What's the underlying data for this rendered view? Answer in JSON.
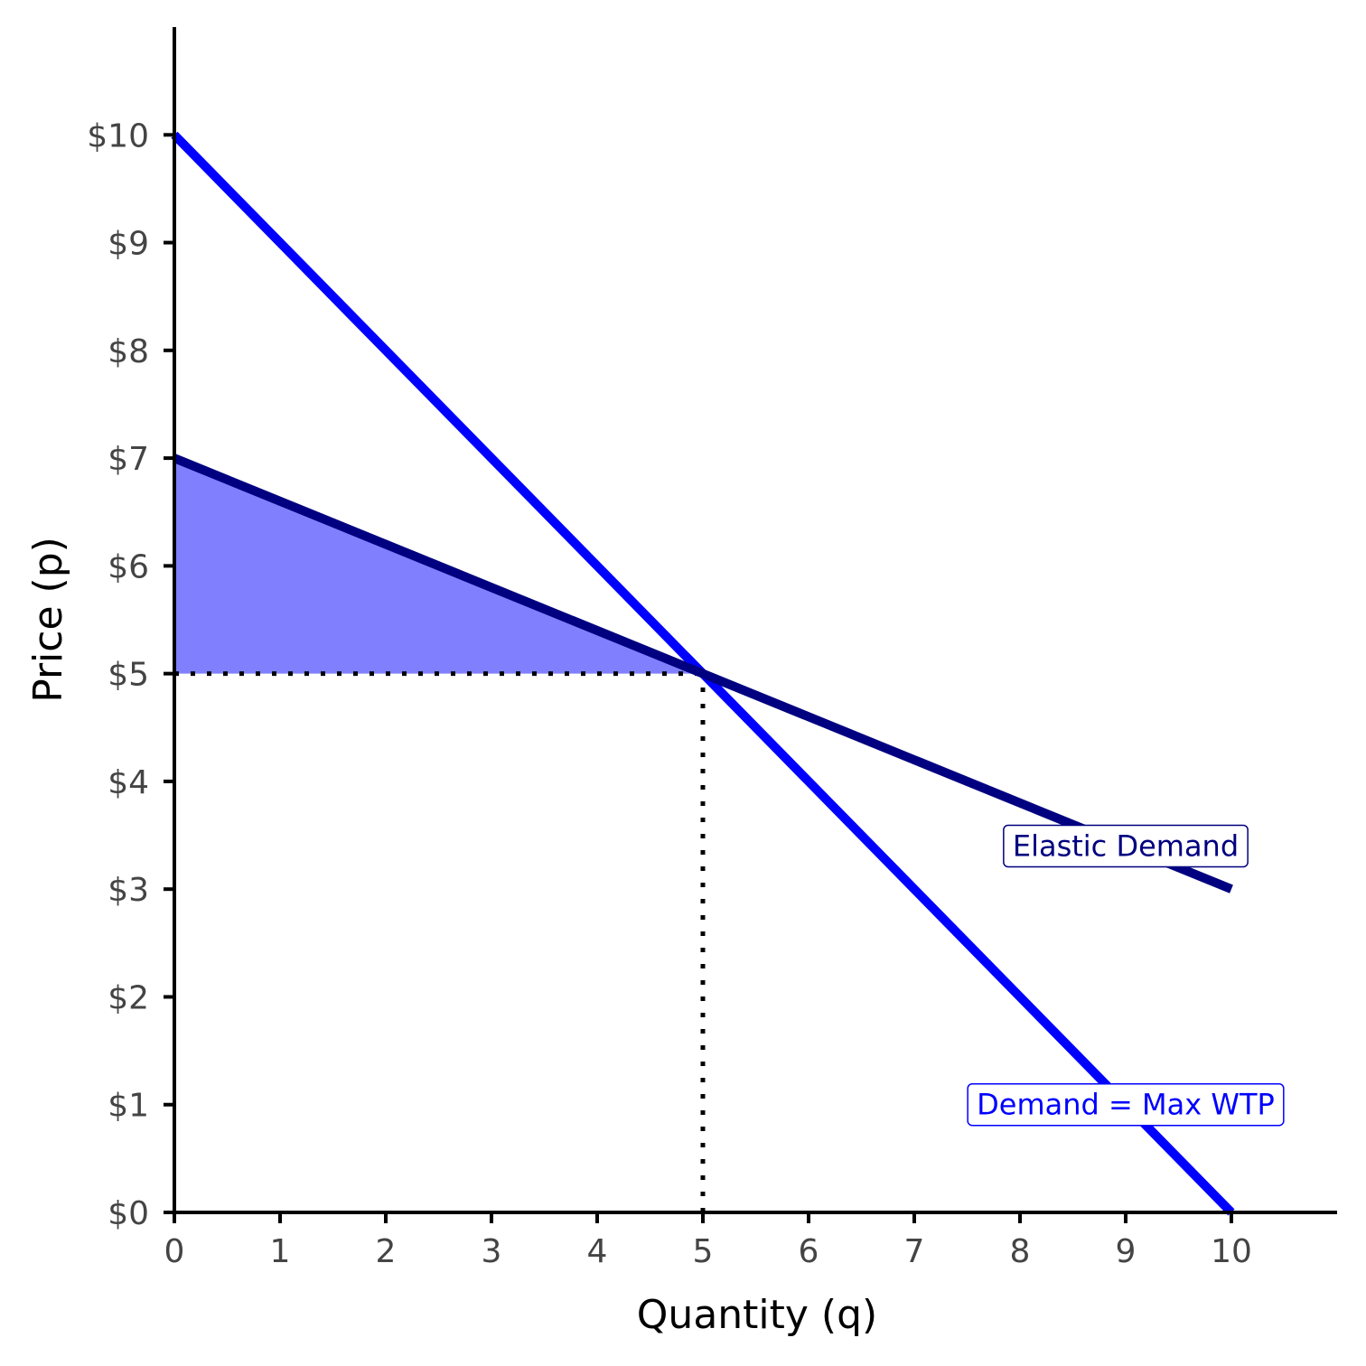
{
  "chart_data": {
    "type": "line",
    "xlabel": "Quantity (q)",
    "ylabel": "Price (p)",
    "xlim": [
      0,
      11
    ],
    "ylim": [
      0,
      11
    ],
    "x_ticks": [
      0,
      1,
      2,
      3,
      4,
      5,
      6,
      7,
      8,
      9,
      10
    ],
    "x_tick_labels": [
      "0",
      "1",
      "2",
      "3",
      "4",
      "5",
      "6",
      "7",
      "8",
      "9",
      "10"
    ],
    "y_ticks": [
      0,
      1,
      2,
      3,
      4,
      5,
      6,
      7,
      8,
      9,
      10
    ],
    "y_tick_labels": [
      "$0",
      "$1",
      "$2",
      "$3",
      "$4",
      "$5",
      "$6",
      "$7",
      "$8",
      "$9",
      "$10"
    ],
    "grid": false,
    "series": [
      {
        "name": "Demand = Max WTP",
        "color": "#0000ff",
        "points": [
          {
            "x": 0,
            "y": 10
          },
          {
            "x": 10,
            "y": 0
          }
        ],
        "label_at": {
          "x": 9,
          "y": 1
        }
      },
      {
        "name": "Elastic Demand",
        "color": "#000080",
        "points": [
          {
            "x": 0,
            "y": 7
          },
          {
            "x": 10,
            "y": 3
          }
        ],
        "label_at": {
          "x": 9,
          "y": 3.4
        }
      }
    ],
    "shaded_area": {
      "color": "#8080ff",
      "polygon": [
        {
          "x": 0,
          "y": 7
        },
        {
          "x": 5,
          "y": 5
        },
        {
          "x": 0,
          "y": 5
        }
      ]
    },
    "reference_lines": [
      {
        "from": {
          "x": 0,
          "y": 5
        },
        "to": {
          "x": 5,
          "y": 5
        },
        "style": "dotted"
      },
      {
        "from": {
          "x": 5,
          "y": 0
        },
        "to": {
          "x": 5,
          "y": 5
        },
        "style": "dotted"
      }
    ]
  }
}
